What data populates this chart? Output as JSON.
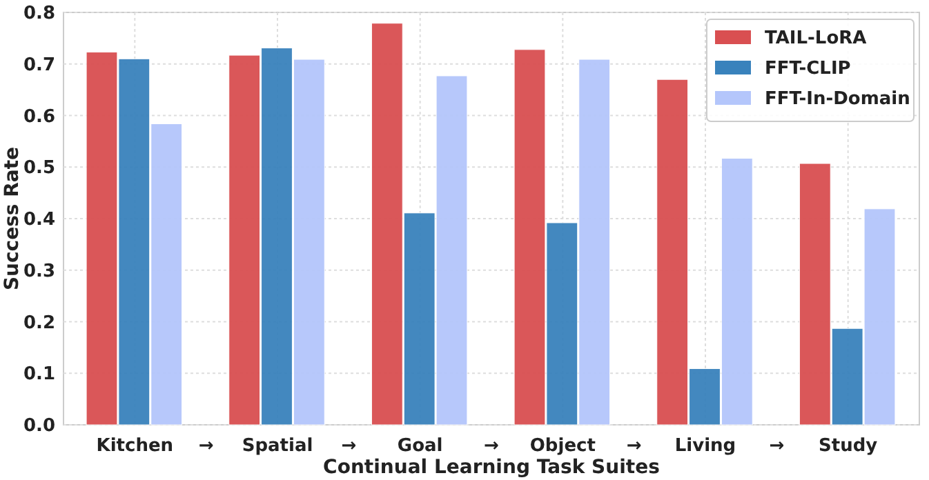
{
  "chart_data": {
    "type": "bar",
    "xlabel": "Continual Learning Task Suites",
    "ylabel": "Success Rate",
    "categories": [
      "Kitchen",
      "Spatial",
      "Goal",
      "Object",
      "Living",
      "Study"
    ],
    "series": [
      {
        "name": "TAIL-LoRA",
        "color": "#d94f51",
        "values": [
          0.723,
          0.717,
          0.779,
          0.728,
          0.67,
          0.507
        ]
      },
      {
        "name": "FFT-CLIP",
        "color": "#3982bc",
        "values": [
          0.71,
          0.731,
          0.411,
          0.392,
          0.109,
          0.187
        ]
      },
      {
        "name": "FFT-In-Domain",
        "color": "#b4c6fb",
        "values": [
          0.584,
          0.709,
          0.677,
          0.709,
          0.517,
          0.419
        ]
      }
    ],
    "ylim": [
      0,
      0.8
    ],
    "yticks": [
      {
        "value": 0,
        "label": "0.0"
      },
      0.1,
      0.2,
      0.3,
      0.4,
      0.5,
      0.6,
      0.7,
      0.8
    ],
    "grid": true,
    "legend": "top right",
    "annotations": [
      "→",
      "→",
      "→",
      "→",
      "→"
    ]
  }
}
